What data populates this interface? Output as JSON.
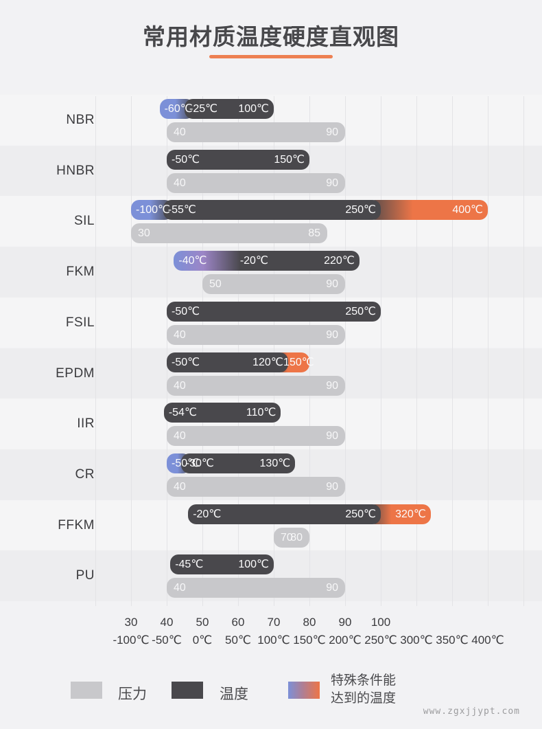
{
  "page": {
    "background": "#F2F2F4",
    "watermark": "www.zgxjjypt.com"
  },
  "title": {
    "text": "常用材质温度硬度直观图"
  },
  "colors": {
    "pressure_bar": "#C8C8CB",
    "temperature_bar": "#49484C",
    "special_low_blue": "#7C90D8",
    "special_high_orange": "#ED7547",
    "title_underline": "#ED8052",
    "gridline": "#E3E3E6",
    "background": "#F2F2F4"
  },
  "legend": {
    "items": [
      {
        "label": "压力",
        "type": "pressure"
      },
      {
        "label": "温度",
        "type": "temperature"
      },
      {
        "label_line1": "特殊条件能",
        "label_line2": "达到的温度",
        "type": "special"
      }
    ]
  },
  "axis": {
    "hardness_ticks": [
      "30",
      "40",
      "50",
      "60",
      "70",
      "80",
      "90",
      "100"
    ],
    "temperature_ticks": [
      "-100℃",
      "-50℃",
      "0℃",
      "50℃",
      "100℃",
      "150℃",
      "200℃",
      "250℃",
      "300℃",
      "350℃",
      "400℃"
    ]
  },
  "chart_data": {
    "type": "bar",
    "orientation": "horizontal",
    "title": "常用材质温度硬度直观图",
    "x_axes": {
      "hardness_pressure": {
        "range": [
          30,
          100
        ],
        "tick_step": 10
      },
      "temperature_celsius": {
        "range": [
          -100,
          400
        ],
        "tick_step": 50
      }
    },
    "grid": "vertical-lines-on",
    "legend_position": "bottom",
    "rows": [
      {
        "material": "NBR",
        "temperature": {
          "special_low": {
            "from": -60,
            "to": -25
          },
          "main": {
            "from": -25,
            "to": 100
          },
          "special_high": null,
          "blend": "overlap",
          "labels": [
            {
              "text": "-60℃",
              "align": "left",
              "at": -60
            },
            {
              "text": "-25℃",
              "align": "left",
              "at": -25
            },
            {
              "text": "100℃",
              "align": "right",
              "at": 100
            }
          ]
        },
        "pressure": {
          "from": 40,
          "to": 90,
          "labels": [
            "40",
            "90"
          ]
        }
      },
      {
        "material": "HNBR",
        "temperature": {
          "special_low": null,
          "main": {
            "from": -50,
            "to": 150
          },
          "special_high": null,
          "blend": "overlap",
          "labels": [
            {
              "text": "-50℃",
              "align": "left",
              "at": -50
            },
            {
              "text": "150℃",
              "align": "right",
              "at": 150
            }
          ]
        },
        "pressure": {
          "from": 40,
          "to": 90,
          "labels": [
            "40",
            "90"
          ]
        }
      },
      {
        "material": "SIL",
        "temperature": {
          "special_low": {
            "from": -100,
            "to": -55
          },
          "main": {
            "from": -55,
            "to": 250
          },
          "special_high": {
            "from": 250,
            "to": 400
          },
          "blend": "overlap",
          "labels": [
            {
              "text": "-100℃",
              "align": "left",
              "at": -100
            },
            {
              "text": "-55℃",
              "align": "left",
              "at": -55
            },
            {
              "text": "250℃",
              "align": "right",
              "at": 250
            },
            {
              "text": "400℃",
              "align": "right",
              "at": 400
            }
          ]
        },
        "pressure": {
          "from": 30,
          "to": 85,
          "labels": [
            "30",
            "85"
          ]
        }
      },
      {
        "material": "FKM",
        "temperature": {
          "special_low": {
            "from": -40,
            "to": -20
          },
          "main": {
            "from": -20,
            "to": 220
          },
          "special_high": null,
          "blend": "smooth",
          "labels": [
            {
              "text": "-40℃",
              "align": "left",
              "at": -40
            },
            {
              "text": "-20℃",
              "align": "left",
              "at": 46
            },
            {
              "text": "220℃",
              "align": "right",
              "at": 220
            }
          ]
        },
        "pressure": {
          "from": 50,
          "to": 90,
          "labels": [
            "50",
            "90"
          ]
        }
      },
      {
        "material": "FSIL",
        "temperature": {
          "special_low": null,
          "main": {
            "from": -50,
            "to": 250
          },
          "special_high": null,
          "blend": "overlap",
          "labels": [
            {
              "text": "-50℃",
              "align": "left",
              "at": -50
            },
            {
              "text": "250℃",
              "align": "right",
              "at": 250
            }
          ]
        },
        "pressure": {
          "from": 40,
          "to": 90,
          "labels": [
            "40",
            "90"
          ]
        }
      },
      {
        "material": "EPDM",
        "temperature": {
          "special_low": null,
          "main": {
            "from": -50,
            "to": 120
          },
          "special_high": {
            "from": 120,
            "to": 150
          },
          "blend": "overlap",
          "labels": [
            {
              "text": "-50℃",
              "align": "left",
              "at": -50
            },
            {
              "text": "120℃",
              "align": "right",
              "at": 120
            },
            {
              "text": "150℃",
              "align": "center",
              "at": 135
            }
          ]
        },
        "pressure": {
          "from": 40,
          "to": 90,
          "labels": [
            "40",
            "90"
          ]
        }
      },
      {
        "material": "IIR",
        "temperature": {
          "special_low": null,
          "main": {
            "from": -54,
            "to": 110
          },
          "special_high": null,
          "blend": "overlap",
          "labels": [
            {
              "text": "-54℃",
              "align": "left",
              "at": -54
            },
            {
              "text": "110℃",
              "align": "right",
              "at": 110
            }
          ]
        },
        "pressure": {
          "from": 40,
          "to": 90,
          "labels": [
            "40",
            "90"
          ]
        }
      },
      {
        "material": "CR",
        "temperature": {
          "special_low": {
            "from": -50,
            "to": -30
          },
          "main": {
            "from": -30,
            "to": 130
          },
          "special_high": null,
          "blend": "overlap",
          "labels": [
            {
              "text": "-50℃",
              "align": "left",
              "at": -50
            },
            {
              "text": "-30℃",
              "align": "left",
              "at": -30
            },
            {
              "text": "130℃",
              "align": "right",
              "at": 130
            }
          ]
        },
        "pressure": {
          "from": 40,
          "to": 90,
          "labels": [
            "40",
            "90"
          ]
        }
      },
      {
        "material": "FFKM",
        "temperature": {
          "special_low": null,
          "main": {
            "from": -20,
            "to": 250
          },
          "special_high": {
            "from": 250,
            "to": 320
          },
          "blend": "overlap",
          "labels": [
            {
              "text": "-20℃",
              "align": "left",
              "at": -20
            },
            {
              "text": "250℃",
              "align": "right",
              "at": 250
            },
            {
              "text": "320℃",
              "align": "right",
              "at": 320
            }
          ]
        },
        "pressure": {
          "from": 70,
          "to": 80,
          "labels": [
            "70",
            "80"
          ]
        }
      },
      {
        "material": "PU",
        "temperature": {
          "special_low": null,
          "main": {
            "from": -45,
            "to": 100
          },
          "special_high": null,
          "blend": "overlap",
          "labels": [
            {
              "text": "-45℃",
              "align": "left",
              "at": -45
            },
            {
              "text": "100℃",
              "align": "right",
              "at": 100
            }
          ]
        },
        "pressure": {
          "from": 40,
          "to": 90,
          "labels": [
            "40",
            "90"
          ]
        }
      }
    ]
  }
}
